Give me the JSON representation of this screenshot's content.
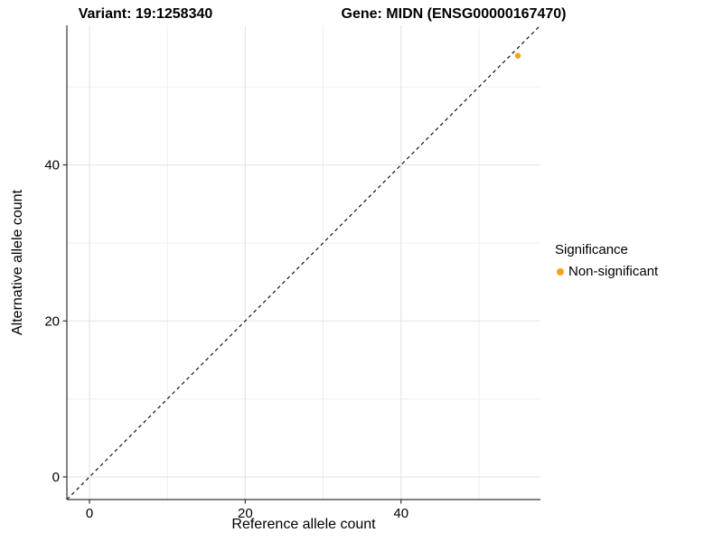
{
  "figure": {
    "title_left": "Variant: 19:1258340",
    "title_right": "Gene: MIDN (ENSG00000167470)"
  },
  "chart_data": {
    "type": "scatter",
    "xlabel": "Reference allele count",
    "ylabel": "Alternative allele count",
    "xlim": [
      -2.9,
      57.9
    ],
    "ylim": [
      -2.9,
      57.9
    ],
    "xticks": [
      0,
      20,
      40
    ],
    "yticks": [
      0,
      20,
      40
    ],
    "xtick_labels": [
      "0",
      "20",
      "40"
    ],
    "ytick_labels": [
      "0",
      "20",
      "40"
    ],
    "xminor": [
      10,
      30,
      50
    ],
    "yminor": [
      10,
      30,
      50
    ],
    "grid": "major+minor",
    "points": [
      {
        "x": 55,
        "y": 54,
        "series": "Non-significant"
      }
    ],
    "identity_line": {
      "slope": 1,
      "intercept": 0,
      "style": "dashed",
      "color": "#000000"
    },
    "legend": {
      "title": "Significance",
      "position": "right",
      "items": [
        {
          "label": "Non-significant",
          "color": "#F9A11B"
        }
      ]
    }
  },
  "colors": {
    "background": "#FFFFFF",
    "axis_line": "#333333",
    "tick_mark": "#333333",
    "tick_text": "#000000",
    "grid_major": "#E2E2E2",
    "grid_minor": "#EFEFEF",
    "point": "#F9A11B"
  }
}
